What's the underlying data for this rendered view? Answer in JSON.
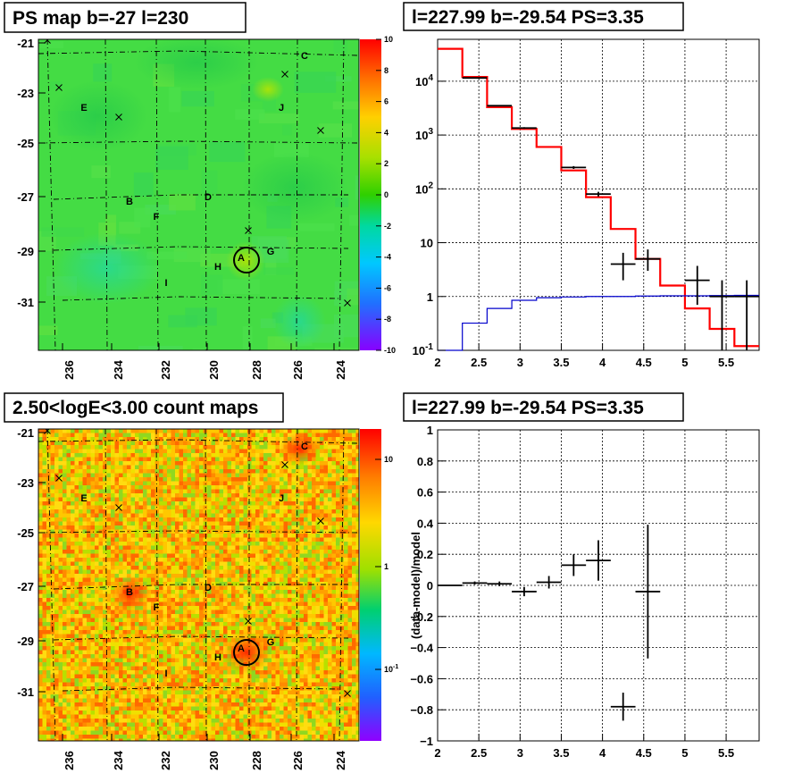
{
  "chart_data": [
    {
      "type": "heatmap",
      "title": "PS map b=-27 l=230",
      "x_ticks": [
        "236",
        "234",
        "232",
        "230",
        "228",
        "226",
        "224"
      ],
      "y_ticks": [
        "-21",
        "-23",
        "-25",
        "-27",
        "-29",
        "-31"
      ],
      "z_range": [
        -10,
        10
      ],
      "colorbar_ticks": [
        "10",
        "8",
        "6",
        "4",
        "2",
        "0",
        "-2",
        "-4",
        "-6",
        "-8",
        "-10"
      ],
      "sources": [
        "A",
        "B",
        "C",
        "D",
        "E",
        "F",
        "G",
        "H",
        "I",
        "J"
      ]
    },
    {
      "type": "line",
      "title": "l=227.99 b=-29.54 PS=3.35",
      "x_ticks": [
        "2",
        "2.5",
        "3",
        "3.5",
        "4",
        "4.5",
        "5",
        "5.5"
      ],
      "y_ticks": [
        "10^-1",
        "1",
        "10",
        "10^2",
        "10^3",
        "10^4"
      ],
      "xlim": [
        2,
        5.9
      ],
      "ylim": [
        0.1,
        60000
      ],
      "log_y": true,
      "grid": true,
      "series": [
        {
          "color": "#ff0000",
          "edges": [
            2.0,
            2.3,
            2.6,
            2.9,
            3.2,
            3.5,
            3.8,
            4.1,
            4.4,
            4.7,
            5.0,
            5.3,
            5.6,
            5.9
          ],
          "values": [
            40000,
            12000,
            3300,
            1300,
            600,
            220,
            70,
            18,
            5,
            1.6,
            0.6,
            0.25,
            0.12
          ]
        },
        {
          "color": "#0000cc",
          "edges": [
            2.0,
            2.3,
            2.6,
            2.9,
            3.2,
            3.5,
            3.8,
            4.1,
            4.4,
            4.7,
            5.0,
            5.3,
            5.6,
            5.9
          ],
          "values": [
            0.1,
            0.32,
            0.6,
            0.85,
            0.95,
            0.98,
            1.0,
            1.0,
            1.02,
            1.03,
            1.03,
            1.04,
            1.05
          ]
        },
        {
          "color": "#000000",
          "points": [
            {
              "x": 2.45,
              "y": 11500,
              "xerr": 0.15,
              "ylo": 11300,
              "yhi": 11700
            },
            {
              "x": 2.75,
              "y": 3500,
              "xerr": 0.15,
              "ylo": 3400,
              "yhi": 3600
            },
            {
              "x": 3.05,
              "y": 1350,
              "xerr": 0.15,
              "ylo": 1300,
              "yhi": 1400
            },
            {
              "x": 3.65,
              "y": 250,
              "xerr": 0.15,
              "ylo": 235,
              "yhi": 265
            },
            {
              "x": 3.95,
              "y": 80,
              "xerr": 0.15,
              "ylo": 72,
              "yhi": 88
            },
            {
              "x": 4.25,
              "y": 4,
              "xerr": 0.15,
              "ylo": 2,
              "yhi": 6.5
            },
            {
              "x": 4.55,
              "y": 5,
              "xerr": 0.15,
              "ylo": 3,
              "yhi": 7.5
            },
            {
              "x": 5.15,
              "y": 2,
              "xerr": 0.15,
              "ylo": 0.7,
              "yhi": 3.7
            },
            {
              "x": 5.45,
              "y": 1,
              "xerr": 0.15,
              "ylo": 0.1,
              "yhi": 2
            },
            {
              "x": 5.75,
              "y": 1,
              "xerr": 0.15,
              "ylo": 0.1,
              "yhi": 2
            }
          ]
        }
      ]
    },
    {
      "type": "heatmap",
      "title": "2.50<logE<3.00 count maps",
      "x_ticks": [
        "236",
        "234",
        "232",
        "230",
        "228",
        "226",
        "224"
      ],
      "y_ticks": [
        "-21",
        "-23",
        "-25",
        "-27",
        "-29",
        "-31"
      ],
      "log_z": true,
      "colorbar_ticks": [
        "10",
        "1",
        "10^-1"
      ],
      "sources": [
        "A",
        "B",
        "C",
        "D",
        "E",
        "F",
        "G",
        "H",
        "I",
        "J"
      ]
    },
    {
      "type": "scatter",
      "title": "l=227.99 b=-29.54 PS=3.35",
      "ylabel": "(data-model)/model",
      "x_ticks": [
        "2",
        "2.5",
        "3",
        "3.5",
        "4",
        "4.5",
        "5",
        "5.5"
      ],
      "y_ticks": [
        "1",
        "0.8",
        "0.6",
        "0.4",
        "0.2",
        "0",
        "-0.2",
        "-0.4",
        "-0.6",
        "-0.8",
        "-1"
      ],
      "xlim": [
        2,
        5.9
      ],
      "ylim": [
        -1,
        1
      ],
      "grid": true,
      "points": [
        {
          "x": 2.15,
          "y": 0.0,
          "xerr": 0.15,
          "yerr": 0.005
        },
        {
          "x": 2.45,
          "y": 0.015,
          "xerr": 0.15,
          "yerr": 0.01
        },
        {
          "x": 2.75,
          "y": 0.01,
          "xerr": 0.15,
          "yerr": 0.015
        },
        {
          "x": 3.05,
          "y": -0.04,
          "xerr": 0.15,
          "yerr": 0.03
        },
        {
          "x": 3.35,
          "y": 0.02,
          "xerr": 0.15,
          "yerr": 0.04
        },
        {
          "x": 3.65,
          "y": 0.13,
          "xerr": 0.15,
          "yerr": 0.07
        },
        {
          "x": 3.95,
          "y": 0.16,
          "xerr": 0.15,
          "yerr": 0.13
        },
        {
          "x": 4.25,
          "y": -0.78,
          "xerr": 0.15,
          "yerr": 0.09
        },
        {
          "x": 4.55,
          "y": -0.04,
          "xerr": 0.15,
          "yerr": 0.43
        }
      ]
    }
  ]
}
